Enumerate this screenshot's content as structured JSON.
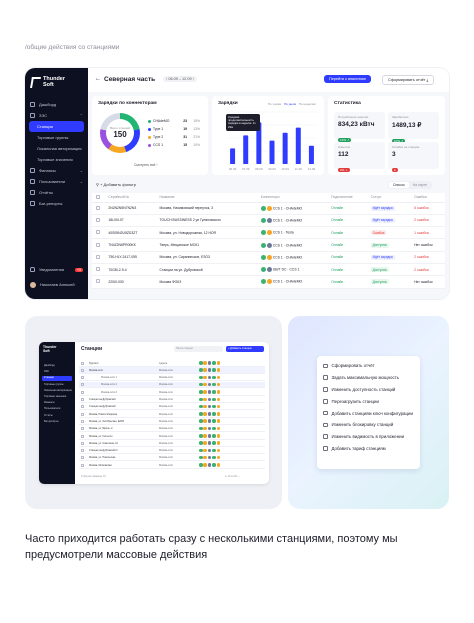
{
  "breadcrumb": "/общие действия со станциями",
  "sidebar": {
    "brand": [
      "Thunder",
      "Soft"
    ],
    "items": [
      {
        "label": "Дашборд",
        "icon": "grid-icon"
      },
      {
        "label": "ЗЭС",
        "icon": "bolt-icon",
        "chev": "⌃"
      },
      {
        "label": "Станции",
        "icon": "",
        "active": true
      },
      {
        "label": "Торговые группы",
        "icon": ""
      },
      {
        "label": "Локальная авторизация",
        "icon": ""
      },
      {
        "label": "Торговые значения",
        "icon": ""
      },
      {
        "label": "Финансы",
        "icon": "coin-icon",
        "chev": "⌄"
      },
      {
        "label": "Пользователи",
        "icon": "users-icon",
        "chev": "⌄"
      },
      {
        "label": "Отчёты",
        "icon": "report-icon"
      },
      {
        "label": "Баг-репорты",
        "icon": "bug-icon"
      }
    ],
    "notifications": {
      "label": "Уведомления",
      "badge": "+3"
    },
    "user": "Николаев Алексей"
  },
  "topbar": {
    "back": "←",
    "title": "Северная часть",
    "date_range": "06.09 – 12.09",
    "primary_button": "Перейти к аналитике",
    "secondary_button": "Сформировать отчёт"
  },
  "connectors_panel": {
    "title": "Зарядки по коннекторам",
    "center_label": "Всего станций",
    "center_value": "150",
    "legend": [
      {
        "name": "CHAdeMO",
        "count": "23",
        "pct": "15%",
        "color": "#22b573"
      },
      {
        "name": "Type 1",
        "count": "19",
        "pct": "13%",
        "color": "#2f3cff"
      },
      {
        "name": "Type 2",
        "count": "31",
        "pct": "21%",
        "color": "#f5a623"
      },
      {
        "name": "CCS 1",
        "count": "15",
        "pct": "10%",
        "color": "#9b51e0"
      }
    ],
    "show_all": "Смотреть всё"
  },
  "charges_panel": {
    "title": "Зарядки",
    "tabs": [
      "По часам",
      "По дням",
      "По неделям"
    ],
    "tooltip": "Средняя продолжительность зарядки в неделю: 1ч 23м"
  },
  "chart_data": {
    "type": "bar",
    "title": "Зарядки",
    "categories": [
      "06.09",
      "07.09",
      "08.09",
      "09.09",
      "10.09",
      "11.09",
      "12.09"
    ],
    "values": [
      30,
      55,
      80,
      45,
      60,
      70,
      35
    ],
    "ylim": [
      0,
      100
    ],
    "grid": true,
    "color": "#2f3cff"
  },
  "stats_panel": {
    "title": "Статистика",
    "tiles": [
      {
        "key": "Потребление энергии",
        "value": "834,23 кВтч",
        "chip": "12% ↗",
        "chip_color": "#22a060"
      },
      {
        "key": "Заработано",
        "value": "1489,13 ₽",
        "chip": "10% ↗",
        "chip_color": "#22a060"
      },
      {
        "key": "Клиенты",
        "value": "112",
        "chip": "2% ↘",
        "chip_color": "#e03b3b"
      },
      {
        "key": "Ошибки на станции",
        "value": "3",
        "chip": "●",
        "chip_color": "#e03b3b"
      }
    ]
  },
  "filters": {
    "add": "+ Добавить фильтр",
    "view": [
      "Список",
      "На карте"
    ]
  },
  "table": {
    "headers": [
      "",
      "Серийный №",
      "Название",
      "Коннекторы",
      "Подключение",
      "Статус",
      "Ошибки"
    ],
    "rows": [
      {
        "serial": "2N2N2N5N7N2N3",
        "name": "Москва, Нахимовский переулок, 3",
        "conn": "CCS 1 · CHAdeMO",
        "online": "Онлайн",
        "status": "Идёт зарядка",
        "st": "wait",
        "err": "6 ошибок"
      },
      {
        "serial": "18L00I-07",
        "name": "TOUCH BUSSINESS 2 ул Гуляновского",
        "conn": "CCS 1 · CHAdeMO",
        "online": "Онлайн",
        "status": "Идёт зарядка",
        "st": "wait",
        "err": "2 ошибки"
      },
      {
        "serial": "40S05N2U5ZD3ZT",
        "name": "Москва, ул. Новодорожная, 12 НОЯ",
        "conn": "CCS 1 · Tesla",
        "online": "Онлайн",
        "status": "Ошибка",
        "st": "err",
        "err": "1 ошибка"
      },
      {
        "serial": "7N4Z2N6PR00KK",
        "name": "Тверь, Мещанское МСК1",
        "conn": "CCS 1 · CHAdeMO",
        "online": "Онлайн",
        "status": "Доступна",
        "st": "ok",
        "err": "Нет ошибок"
      },
      {
        "serial": "T50-HLY-2417-055",
        "name": "Москва, ул. Саранинское, ЕЗО3",
        "conn": "CCS 1 · CHAdeMO",
        "online": "Онлайн",
        "status": "Идёт зарядка",
        "st": "wait",
        "err": "2 ошибки"
      },
      {
        "serial": "70G8I-2-9-4",
        "name": "Станции на ул. Дубровской",
        "conn": "GB/T DC · CCS 1",
        "online": "Онлайн",
        "status": "Доступна",
        "st": "ok",
        "err": "2 ошибки"
      },
      {
        "serial": "220I0-030",
        "name": "Москва ФОКЗ",
        "conn": "CCS 1 · CHAdeMO",
        "online": "Онлайн",
        "status": "Доступна",
        "st": "ok",
        "err": "Нет ошибок"
      }
    ]
  },
  "mini": {
    "brand": [
      "Thunder",
      "Soft"
    ],
    "title": "Станции",
    "search_placeholder": "Поиск станции",
    "button": "+ Добавить станцию",
    "rows": [
      {
        "name": "Группа 1",
        "addr": "Адреса",
        "type": "group"
      },
      {
        "name": "Москва-сити",
        "addr": "Москва-сити",
        "type": "group",
        "hl": true
      },
      {
        "name": "Москва-сити 1",
        "addr": "Москва-сити",
        "type": "child"
      },
      {
        "name": "Москва-сити 2",
        "addr": "Москва-сити",
        "type": "child",
        "hl": true
      },
      {
        "name": "Москва-сити 3",
        "addr": "Москва-сити",
        "type": "child"
      },
      {
        "name": "Станции на Дубровской",
        "addr": "Москва-сити",
        "type": "group"
      },
      {
        "name": "Станция на Дубровской",
        "addr": "Москва-сити",
        "type": "group"
      },
      {
        "name": "Москва, Новослободская",
        "addr": "Москва-сити",
        "type": "group"
      },
      {
        "name": "Москва, ул. Октябрьская, ЕЗО3",
        "addr": "Москва-сити",
        "type": "group"
      },
      {
        "name": "Москва, ул. Брошь, 2",
        "addr": "Москва-сити",
        "type": "group"
      },
      {
        "name": "Москва, ул. Гастелло",
        "addr": "Москва-сити",
        "type": "group"
      },
      {
        "name": "Москва, ул. Советская, 12",
        "addr": "Москва-сити",
        "type": "group"
      },
      {
        "name": "Станция на Дубровской 4",
        "addr": "Москва-сити",
        "type": "group"
      },
      {
        "name": "Москва, ул. Никольская",
        "addr": "Москва-сити",
        "type": "group"
      },
      {
        "name": "Москва, Московская",
        "addr": "Москва-сити",
        "type": "group"
      }
    ],
    "footer": "Строк на странице: 10",
    "pager": "1–10 из 63   ‹ ›"
  },
  "bulk_menu": [
    {
      "label": "Сформировать отчёт",
      "icon": "report-icon"
    },
    {
      "label": "Задать максимальную мощность",
      "icon": "bolt-icon"
    },
    {
      "label": "Изменить доступность станций",
      "icon": "toggle-icon"
    },
    {
      "label": "Перезагрузить станции",
      "icon": "refresh-icon"
    },
    {
      "label": "Добавить станциям ключ конфигурации",
      "icon": "key-icon"
    },
    {
      "label": "Изменить блокировку станций",
      "icon": "lock-icon"
    },
    {
      "label": "Изменить видимость в приложении",
      "icon": "eye-icon"
    },
    {
      "label": "Добавить тариф станциям",
      "icon": "tag-icon"
    }
  ],
  "caption": "Часто приходится работать сразу с несколькими станциями, поэтому мы предусмотрели массовые действия"
}
